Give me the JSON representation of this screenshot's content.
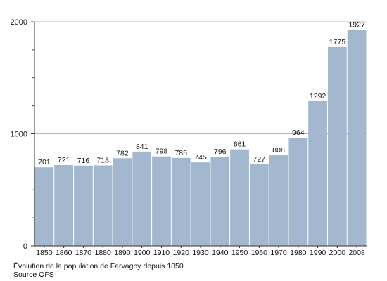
{
  "chart_data": {
    "type": "bar",
    "categories": [
      "1850",
      "1860",
      "1870",
      "1880",
      "1890",
      "1900",
      "1910",
      "1920",
      "1930",
      "1940",
      "1950",
      "1960",
      "1970",
      "1980",
      "1990",
      "2000",
      "2008"
    ],
    "values": [
      701,
      721,
      716,
      718,
      782,
      841,
      798,
      785,
      745,
      796,
      861,
      727,
      808,
      964,
      1292,
      1775,
      1927
    ],
    "ylim": [
      0,
      2000
    ],
    "y_ticks": [
      0,
      1000,
      2000
    ],
    "grid": "horizontal",
    "bar_color": "#a3b8cf",
    "title": "Évolution de la population de Farvagny depuis 1850",
    "subtitle": "Source OFS",
    "xlabel": "",
    "ylabel": ""
  }
}
